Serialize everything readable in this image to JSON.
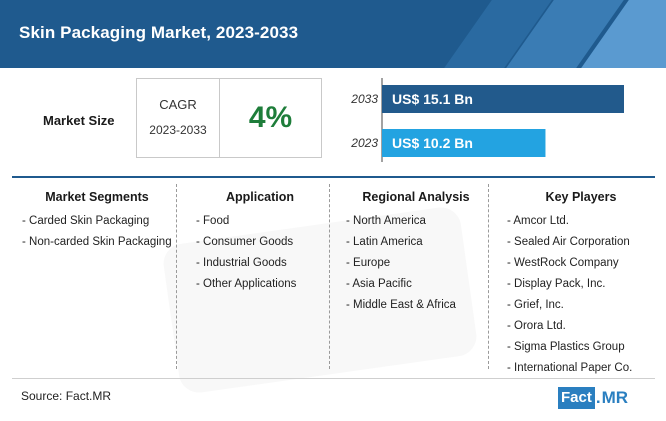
{
  "header": {
    "title": "Skin Packaging Market, 2023-2033"
  },
  "market_size": {
    "label": "Market Size",
    "cagr_label": "CAGR",
    "cagr_period": "2023-2033",
    "cagr_value": "4%"
  },
  "chart_data": {
    "type": "bar",
    "orientation": "horizontal",
    "categories": [
      "2033",
      "2023"
    ],
    "values": [
      15.1,
      10.2
    ],
    "data_labels": [
      "US$ 15.1 Bn",
      "US$ 10.2 Bn"
    ],
    "unit": "US$ Bn",
    "colors": [
      "#225a8c",
      "#23a3e1"
    ]
  },
  "segments": {
    "market_segments": {
      "title": "Market Segments",
      "items": [
        "Carded Skin Packaging",
        "Non-carded Skin Packaging"
      ]
    },
    "application": {
      "title": "Application",
      "items": [
        "Food",
        "Consumer Goods",
        "Industrial Goods",
        "Other Applications"
      ]
    },
    "regional_analysis": {
      "title": "Regional Analysis",
      "items": [
        "North America",
        "Latin America",
        "Europe",
        "Asia Pacific",
        "Middle East & Africa"
      ]
    },
    "key_players": {
      "title": "Key Players",
      "items": [
        "Amcor Ltd.",
        "Sealed Air Corporation",
        "WestRock Company",
        "Display Pack, Inc.",
        "Grief, Inc.",
        "Orora Ltd.",
        "Sigma Plastics Group",
        "International Paper Co."
      ]
    }
  },
  "footer": {
    "source": "Source: Fact.MR",
    "logo_left": "Fact",
    "logo_dot": ".",
    "logo_right": "MR"
  },
  "colors": {
    "brand": "#1f5a8e",
    "cagr": "#1e7d3a"
  }
}
